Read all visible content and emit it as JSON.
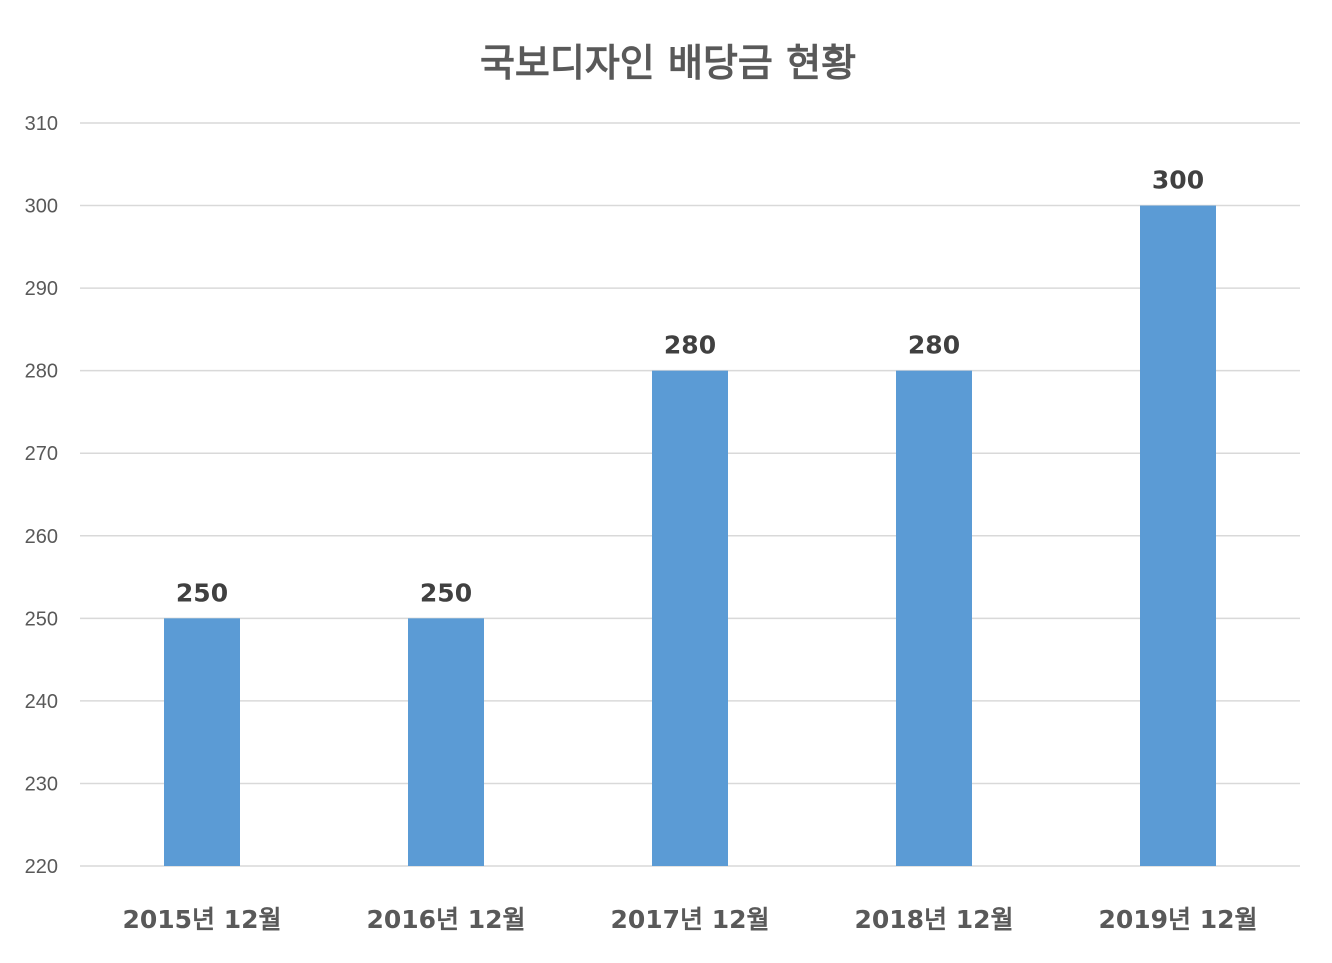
{
  "chart_data": {
    "type": "bar",
    "title": "국보디자인 배당금 현황",
    "xlabel": "",
    "ylabel": "",
    "categories": [
      "2015년 12월",
      "2016년 12월",
      "2017년 12월",
      "2018년 12월",
      "2019년 12월"
    ],
    "values": [
      250,
      250,
      280,
      280,
      300
    ],
    "data_labels": [
      "250",
      "250",
      "280",
      "280",
      "300"
    ],
    "ylim": [
      220,
      310
    ],
    "yticks": [
      220,
      230,
      240,
      250,
      260,
      270,
      280,
      290,
      300,
      310
    ],
    "ytick_labels": [
      "220",
      "230",
      "240",
      "250",
      "260",
      "270",
      "280",
      "290",
      "300",
      "310"
    ],
    "grid": true,
    "legend": "none",
    "bar_color": "#5b9bd5"
  }
}
